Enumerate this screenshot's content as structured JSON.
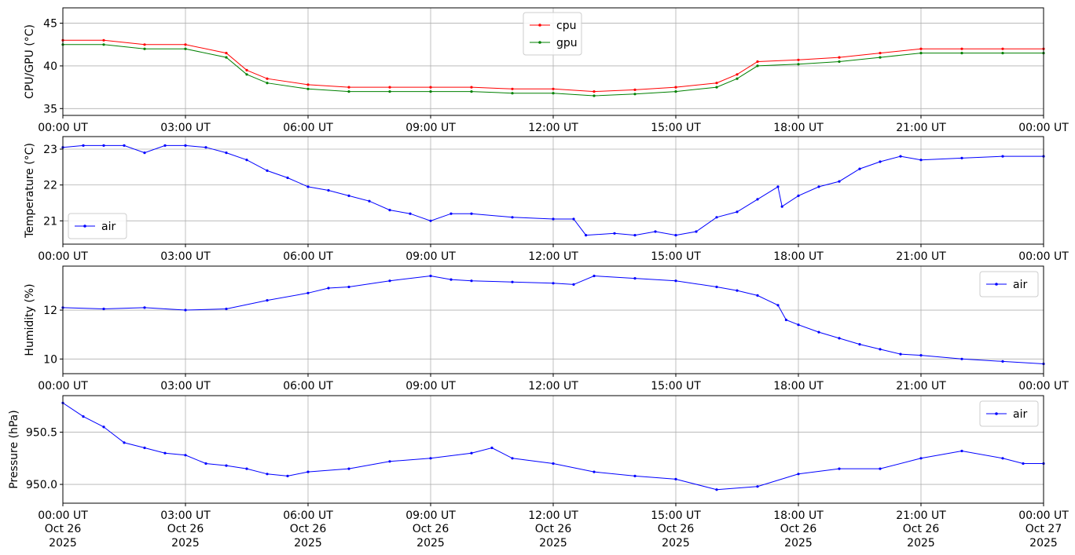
{
  "chart_data": [
    {
      "type": "line",
      "ylabel": "CPU/GPU (°C)",
      "ylim": [
        34.2,
        46.8
      ],
      "yticks": [
        35,
        40,
        45
      ],
      "xlim_hours": [
        0,
        24
      ],
      "grid": true,
      "legend": "top-center",
      "series": [
        {
          "name": "cpu",
          "color": "#ff0000",
          "points": [
            [
              0,
              43
            ],
            [
              1,
              43
            ],
            [
              2,
              42.5
            ],
            [
              3,
              42.5
            ],
            [
              4,
              41.5
            ],
            [
              4.5,
              39.5
            ],
            [
              5,
              38.5
            ],
            [
              6,
              37.8
            ],
            [
              7,
              37.5
            ],
            [
              8,
              37.5
            ],
            [
              9,
              37.5
            ],
            [
              10,
              37.5
            ],
            [
              11,
              37.3
            ],
            [
              12,
              37.3
            ],
            [
              13,
              37
            ],
            [
              14,
              37.2
            ],
            [
              15,
              37.5
            ],
            [
              16,
              38
            ],
            [
              16.5,
              39
            ],
            [
              17,
              40.5
            ],
            [
              18,
              40.7
            ],
            [
              19,
              41
            ],
            [
              20,
              41.5
            ],
            [
              21,
              42
            ],
            [
              22,
              42
            ],
            [
              23,
              42
            ],
            [
              24,
              42
            ]
          ]
        },
        {
          "name": "gpu",
          "color": "#008000",
          "points": [
            [
              0,
              42.5
            ],
            [
              1,
              42.5
            ],
            [
              2,
              42
            ],
            [
              3,
              42
            ],
            [
              4,
              41
            ],
            [
              4.5,
              39
            ],
            [
              5,
              38
            ],
            [
              6,
              37.3
            ],
            [
              7,
              37
            ],
            [
              8,
              37
            ],
            [
              9,
              37
            ],
            [
              10,
              37
            ],
            [
              11,
              36.8
            ],
            [
              12,
              36.8
            ],
            [
              13,
              36.5
            ],
            [
              14,
              36.7
            ],
            [
              15,
              37
            ],
            [
              16,
              37.5
            ],
            [
              16.5,
              38.5
            ],
            [
              17,
              40
            ],
            [
              18,
              40.2
            ],
            [
              19,
              40.5
            ],
            [
              20,
              41
            ],
            [
              21,
              41.5
            ],
            [
              22,
              41.5
            ],
            [
              23,
              41.5
            ],
            [
              24,
              41.5
            ]
          ]
        }
      ]
    },
    {
      "type": "line",
      "ylabel": "Temperature (°C)",
      "ylim": [
        20.35,
        23.35
      ],
      "yticks": [
        21,
        22,
        23
      ],
      "xlim_hours": [
        0,
        24
      ],
      "grid": true,
      "legend": "lower-left",
      "series": [
        {
          "name": "air",
          "color": "#0000ff",
          "points": [
            [
              0,
              23.05
            ],
            [
              0.5,
              23.1
            ],
            [
              1,
              23.1
            ],
            [
              1.5,
              23.1
            ],
            [
              2,
              22.9
            ],
            [
              2.5,
              23.1
            ],
            [
              3,
              23.1
            ],
            [
              3.5,
              23.05
            ],
            [
              4,
              22.9
            ],
            [
              4.5,
              22.7
            ],
            [
              5,
              22.4
            ],
            [
              5.5,
              22.2
            ],
            [
              6,
              21.95
            ],
            [
              6.5,
              21.85
            ],
            [
              7,
              21.7
            ],
            [
              7.5,
              21.55
            ],
            [
              8,
              21.3
            ],
            [
              8.5,
              21.2
            ],
            [
              9,
              21
            ],
            [
              9.5,
              21.2
            ],
            [
              10,
              21.2
            ],
            [
              11,
              21.1
            ],
            [
              12,
              21.05
            ],
            [
              12.5,
              21.05
            ],
            [
              12.8,
              20.6
            ],
            [
              13.5,
              20.65
            ],
            [
              14,
              20.6
            ],
            [
              14.5,
              20.7
            ],
            [
              15,
              20.6
            ],
            [
              15.5,
              20.7
            ],
            [
              16,
              21.1
            ],
            [
              16.5,
              21.25
            ],
            [
              17,
              21.6
            ],
            [
              17.5,
              21.95
            ],
            [
              17.6,
              21.4
            ],
            [
              18,
              21.7
            ],
            [
              18.5,
              21.95
            ],
            [
              19,
              22.1
            ],
            [
              19.5,
              22.45
            ],
            [
              20,
              22.65
            ],
            [
              20.5,
              22.8
            ],
            [
              21,
              22.7
            ],
            [
              22,
              22.75
            ],
            [
              23,
              22.8
            ],
            [
              24,
              22.8
            ]
          ]
        }
      ]
    },
    {
      "type": "line",
      "ylabel": "Humidity (%)",
      "ylim": [
        9.4,
        13.8
      ],
      "yticks": [
        10,
        12
      ],
      "xlim_hours": [
        0,
        24
      ],
      "grid": true,
      "legend": "top-right",
      "series": [
        {
          "name": "air",
          "color": "#0000ff",
          "points": [
            [
              0,
              12.1
            ],
            [
              1,
              12.05
            ],
            [
              2,
              12.1
            ],
            [
              3,
              12
            ],
            [
              4,
              12.05
            ],
            [
              5,
              12.4
            ],
            [
              6,
              12.7
            ],
            [
              6.5,
              12.9
            ],
            [
              7,
              12.95
            ],
            [
              8,
              13.2
            ],
            [
              9,
              13.4
            ],
            [
              9.5,
              13.25
            ],
            [
              10,
              13.2
            ],
            [
              11,
              13.15
            ],
            [
              12,
              13.1
            ],
            [
              12.5,
              13.05
            ],
            [
              13,
              13.4
            ],
            [
              14,
              13.3
            ],
            [
              15,
              13.2
            ],
            [
              16,
              12.95
            ],
            [
              16.5,
              12.8
            ],
            [
              17,
              12.6
            ],
            [
              17.5,
              12.2
            ],
            [
              17.7,
              11.6
            ],
            [
              18,
              11.4
            ],
            [
              18.5,
              11.1
            ],
            [
              19,
              10.85
            ],
            [
              19.5,
              10.6
            ],
            [
              20,
              10.4
            ],
            [
              20.5,
              10.2
            ],
            [
              21,
              10.15
            ],
            [
              22,
              10
            ],
            [
              23,
              9.9
            ],
            [
              24,
              9.8
            ]
          ]
        }
      ]
    },
    {
      "type": "line",
      "ylabel": "Pressure (hPa)",
      "ylim": [
        949.82,
        950.85
      ],
      "yticks": [
        950.0,
        950.5
      ],
      "ytick_labels": [
        "950.0",
        "950.5"
      ],
      "xlim_hours": [
        0,
        24
      ],
      "grid": true,
      "legend": "top-right",
      "series": [
        {
          "name": "air",
          "color": "#0000ff",
          "points": [
            [
              0,
              950.78
            ],
            [
              0.5,
              950.65
            ],
            [
              1,
              950.55
            ],
            [
              1.5,
              950.4
            ],
            [
              2,
              950.35
            ],
            [
              2.5,
              950.3
            ],
            [
              3,
              950.28
            ],
            [
              3.5,
              950.2
            ],
            [
              4,
              950.18
            ],
            [
              4.5,
              950.15
            ],
            [
              5,
              950.1
            ],
            [
              5.5,
              950.08
            ],
            [
              6,
              950.12
            ],
            [
              7,
              950.15
            ],
            [
              8,
              950.22
            ],
            [
              9,
              950.25
            ],
            [
              10,
              950.3
            ],
            [
              10.5,
              950.35
            ],
            [
              11,
              950.25
            ],
            [
              12,
              950.2
            ],
            [
              13,
              950.12
            ],
            [
              14,
              950.08
            ],
            [
              15,
              950.05
            ],
            [
              16,
              949.95
            ],
            [
              17,
              949.98
            ],
            [
              18,
              950.1
            ],
            [
              19,
              950.15
            ],
            [
              20,
              950.15
            ],
            [
              21,
              950.25
            ],
            [
              22,
              950.32
            ],
            [
              23,
              950.25
            ],
            [
              23.5,
              950.2
            ],
            [
              24,
              950.2
            ]
          ]
        }
      ]
    }
  ],
  "x_axis": {
    "tick_hours": [
      0,
      3,
      6,
      9,
      12,
      15,
      18,
      21,
      24
    ],
    "tick_labels": [
      "00:00 UT",
      "03:00 UT",
      "06:00 UT",
      "09:00 UT",
      "12:00 UT",
      "15:00 UT",
      "18:00 UT",
      "21:00 UT",
      "00:00 UT"
    ],
    "bottom_date_labels": [
      "Oct 26",
      "Oct 26",
      "Oct 26",
      "Oct 26",
      "Oct 26",
      "Oct 26",
      "Oct 26",
      "Oct 26",
      "Oct 27"
    ],
    "bottom_year_labels": [
      "2025",
      "2025",
      "2025",
      "2025",
      "2025",
      "2025",
      "2025",
      "2025",
      "2025"
    ]
  }
}
